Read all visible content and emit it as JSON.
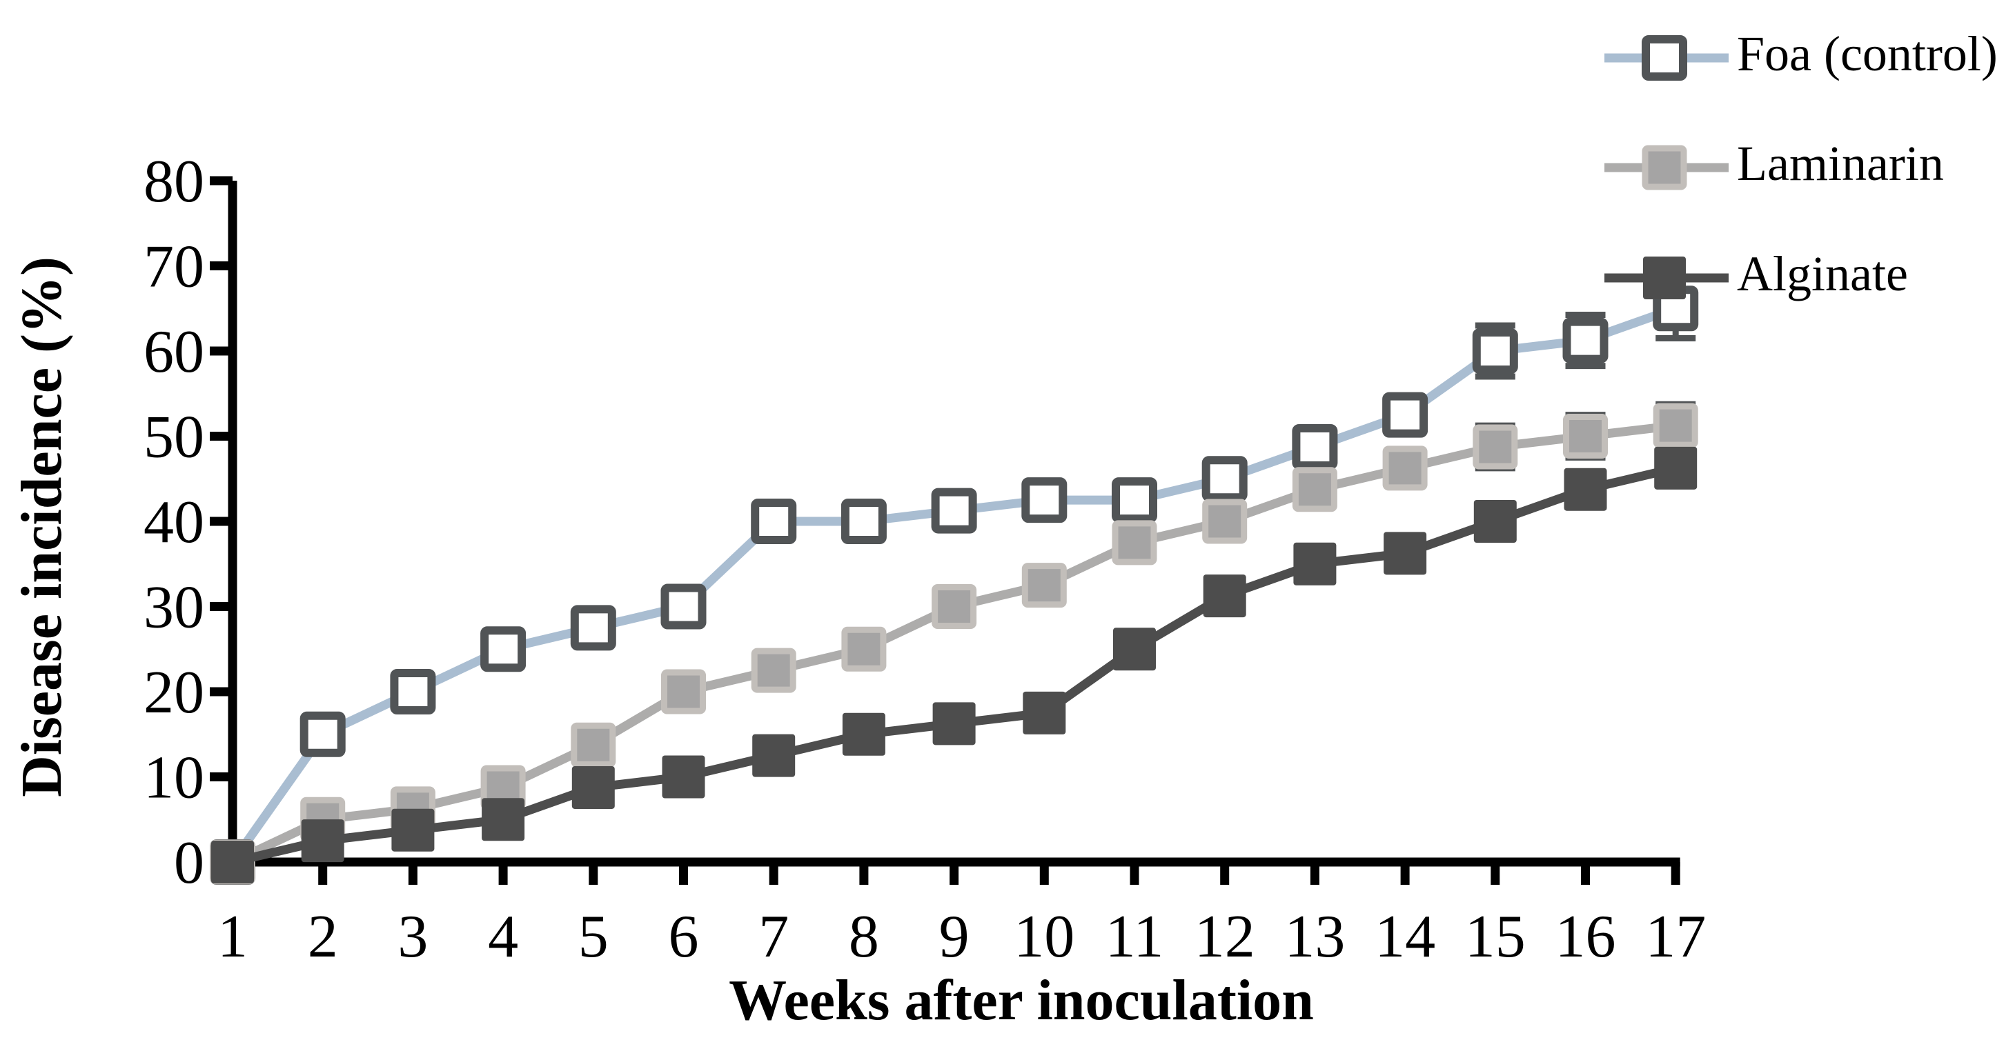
{
  "chart_data": {
    "type": "line",
    "title": "",
    "xlabel": "Weeks after inoculation",
    "ylabel": "Disease incidence (%)",
    "x": [
      1,
      2,
      3,
      4,
      5,
      6,
      7,
      8,
      9,
      10,
      11,
      12,
      13,
      14,
      15,
      16,
      17
    ],
    "xtick_labels": [
      "1",
      "2",
      "3",
      "4",
      "5",
      "6",
      "7",
      "8",
      "9",
      "10",
      "11",
      "12",
      "13",
      "14",
      "15",
      "16",
      "17"
    ],
    "ytick_values": [
      0,
      10,
      20,
      30,
      40,
      50,
      60,
      70,
      80
    ],
    "ytick_labels": [
      "0",
      "10",
      "20",
      "30",
      "40",
      "50",
      "60",
      "70",
      "80"
    ],
    "ylim": [
      0,
      80
    ],
    "xlim": [
      1,
      17
    ],
    "grid": false,
    "legend_position": "top-right",
    "series": [
      {
        "name": "Foa (control)",
        "values": [
          0,
          15,
          20,
          25,
          27.5,
          30,
          40,
          40,
          41.25,
          42.5,
          42.5,
          45,
          48.75,
          52.5,
          60,
          61.25,
          65
        ],
        "errors": [
          0,
          0,
          0,
          0,
          0,
          0,
          0,
          0,
          0,
          0,
          0,
          0,
          0,
          0,
          3,
          3,
          3.5
        ],
        "line_color": "#a9bdd1",
        "marker": "square-open",
        "marker_fill": "#ffffff",
        "marker_stroke": "#515456"
      },
      {
        "name": "Laminarin",
        "values": [
          0,
          5,
          6.25,
          8.75,
          13.75,
          20,
          22.5,
          25,
          30,
          32.5,
          37.5,
          40,
          43.75,
          46.25,
          48.75,
          50,
          51.25
        ],
        "errors": [
          0,
          0,
          0,
          0,
          0,
          0,
          0,
          0,
          0,
          0,
          0,
          0,
          0,
          0,
          2.5,
          2.5,
          2.5
        ],
        "line_color": "#adacab",
        "marker": "square-filled",
        "marker_fill": "#a5a4a4",
        "marker_stroke": "#c2beba"
      },
      {
        "name": "Alginate",
        "values": [
          0,
          2.5,
          3.75,
          5,
          8.75,
          10,
          12.5,
          15,
          16.25,
          17.5,
          25,
          31.25,
          35,
          36.25,
          40,
          43.75,
          46.25
        ],
        "errors": [
          0,
          0,
          0,
          0,
          0,
          0,
          0,
          0,
          0,
          0,
          0,
          0,
          0,
          0,
          0,
          0,
          0
        ],
        "line_color": "#4d4d4d",
        "marker": "square-filled",
        "marker_fill": "#4d4d4d",
        "marker_stroke": "#4d4d4d"
      }
    ],
    "error_bar_color": "#515456",
    "axis_color": "#000000",
    "text_color": "#000000",
    "background_color": "#ffffff"
  }
}
